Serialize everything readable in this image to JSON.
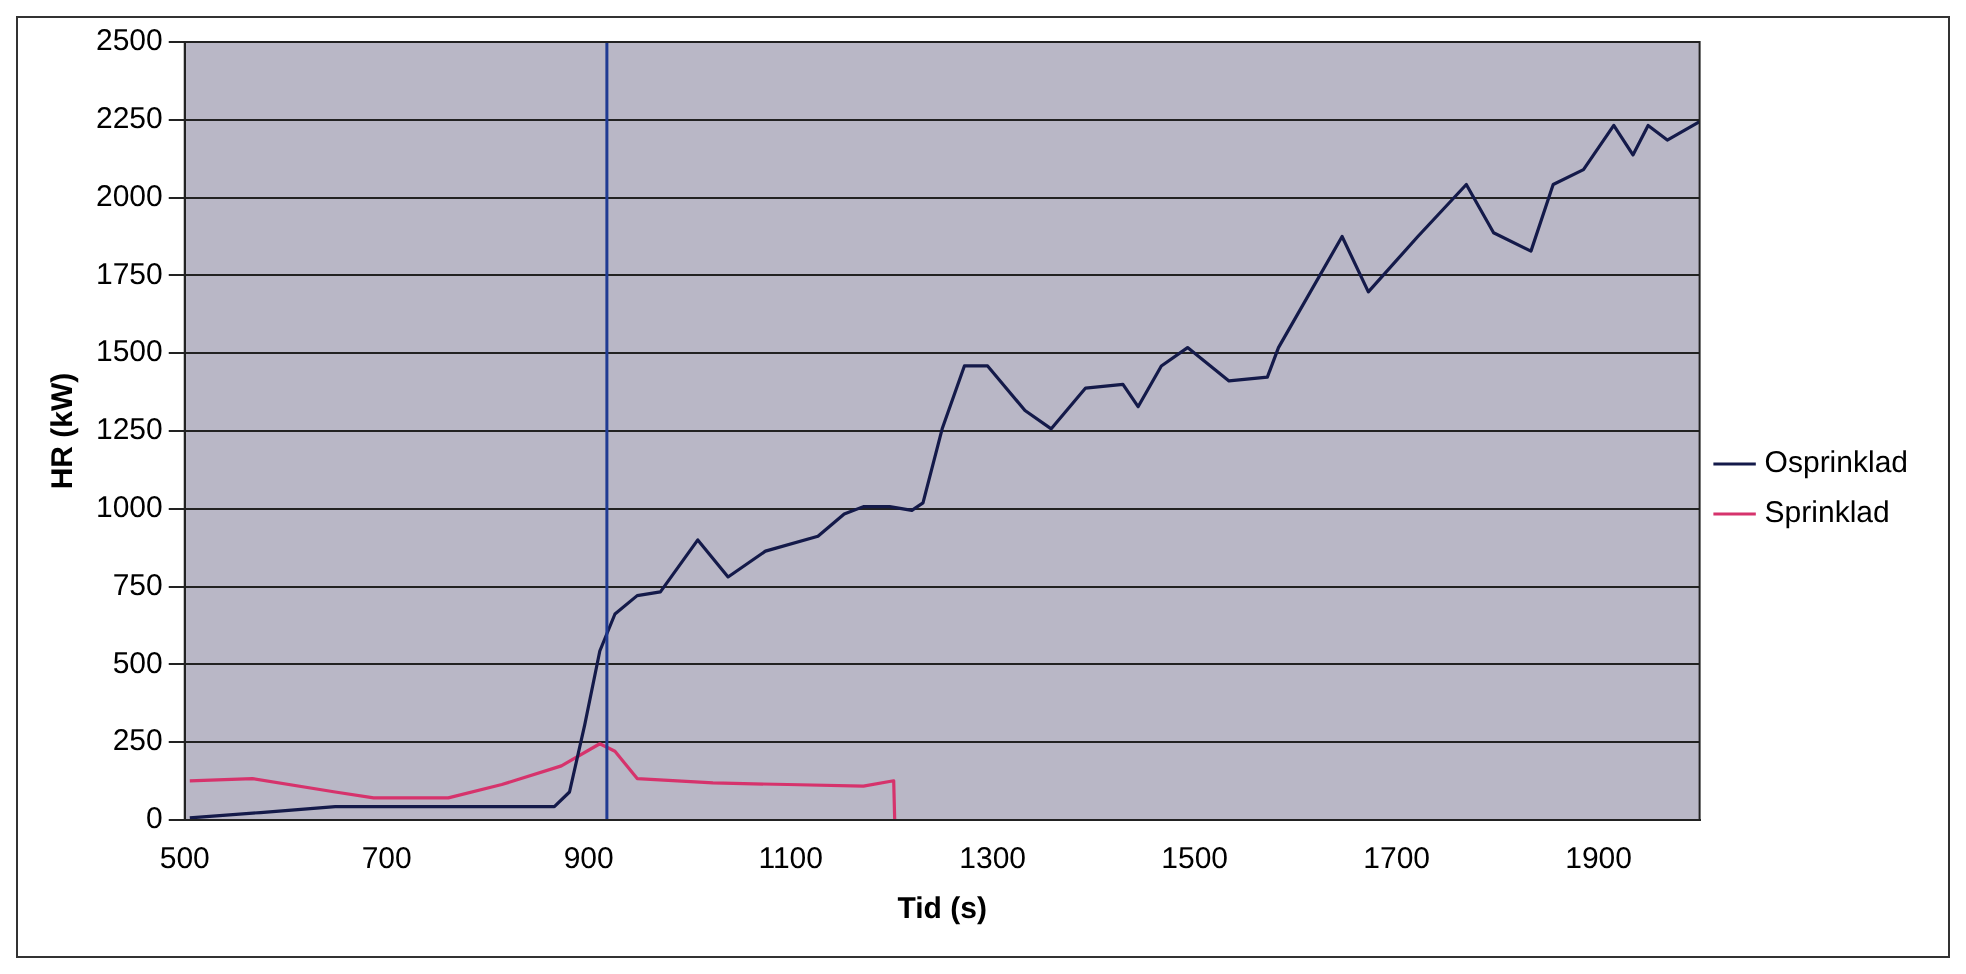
{
  "chart_data": {
    "type": "line",
    "xlabel": "Tid (s)",
    "ylabel": "HR (kW)",
    "xlim": [
      500,
      2000
    ],
    "xticks": [
      500,
      700,
      900,
      1100,
      1300,
      1500,
      1700,
      1900
    ],
    "ylim": [
      0,
      2500
    ],
    "yticks": [
      0,
      250,
      500,
      750,
      1000,
      1250,
      1500,
      1750,
      2000,
      2250,
      2500
    ],
    "grid": "y",
    "legend": "right",
    "marker": "none",
    "line_style": "solid",
    "ref_lines": [
      {
        "axis": "x",
        "value": 918,
        "color": "#1f3a93"
      }
    ],
    "series": [
      {
        "name": "Osprinklad",
        "color": "#141a4a",
        "x": [
          505,
          575,
          649,
          866,
          881,
          896,
          911,
          926,
          948,
          971,
          1008,
          1038,
          1075,
          1127,
          1153,
          1172,
          1198,
          1220,
          1231,
          1250,
          1272,
          1295,
          1332,
          1358,
          1392,
          1429,
          1444,
          1467,
          1493,
          1534,
          1572,
          1583,
          1646,
          1672,
          1721,
          1769,
          1796,
          1833,
          1855,
          1885,
          1915,
          1934,
          1949,
          1968,
          2000
        ],
        "values": [
          7,
          24,
          43,
          43,
          90,
          305,
          543,
          662,
          721,
          733,
          900,
          781,
          864,
          912,
          983,
          1007,
          1007,
          995,
          1019,
          1257,
          1459,
          1459,
          1316,
          1257,
          1388,
          1400,
          1328,
          1459,
          1518,
          1411,
          1423,
          1518,
          1875,
          1697,
          1875,
          2042,
          1887,
          1828,
          2042,
          2090,
          2232,
          2137,
          2232,
          2185,
          2244
        ]
      },
      {
        "name": "Sprinklad",
        "color": "#d6336c",
        "x": [
          505,
          567,
          649,
          687,
          761,
          814,
          873,
          911,
          926,
          948,
          1023,
          1097,
          1172,
          1202,
          1203
        ],
        "values": [
          126,
          133,
          90,
          71,
          71,
          114,
          174,
          245,
          221,
          133,
          119,
          114,
          109,
          126,
          0
        ]
      }
    ]
  }
}
